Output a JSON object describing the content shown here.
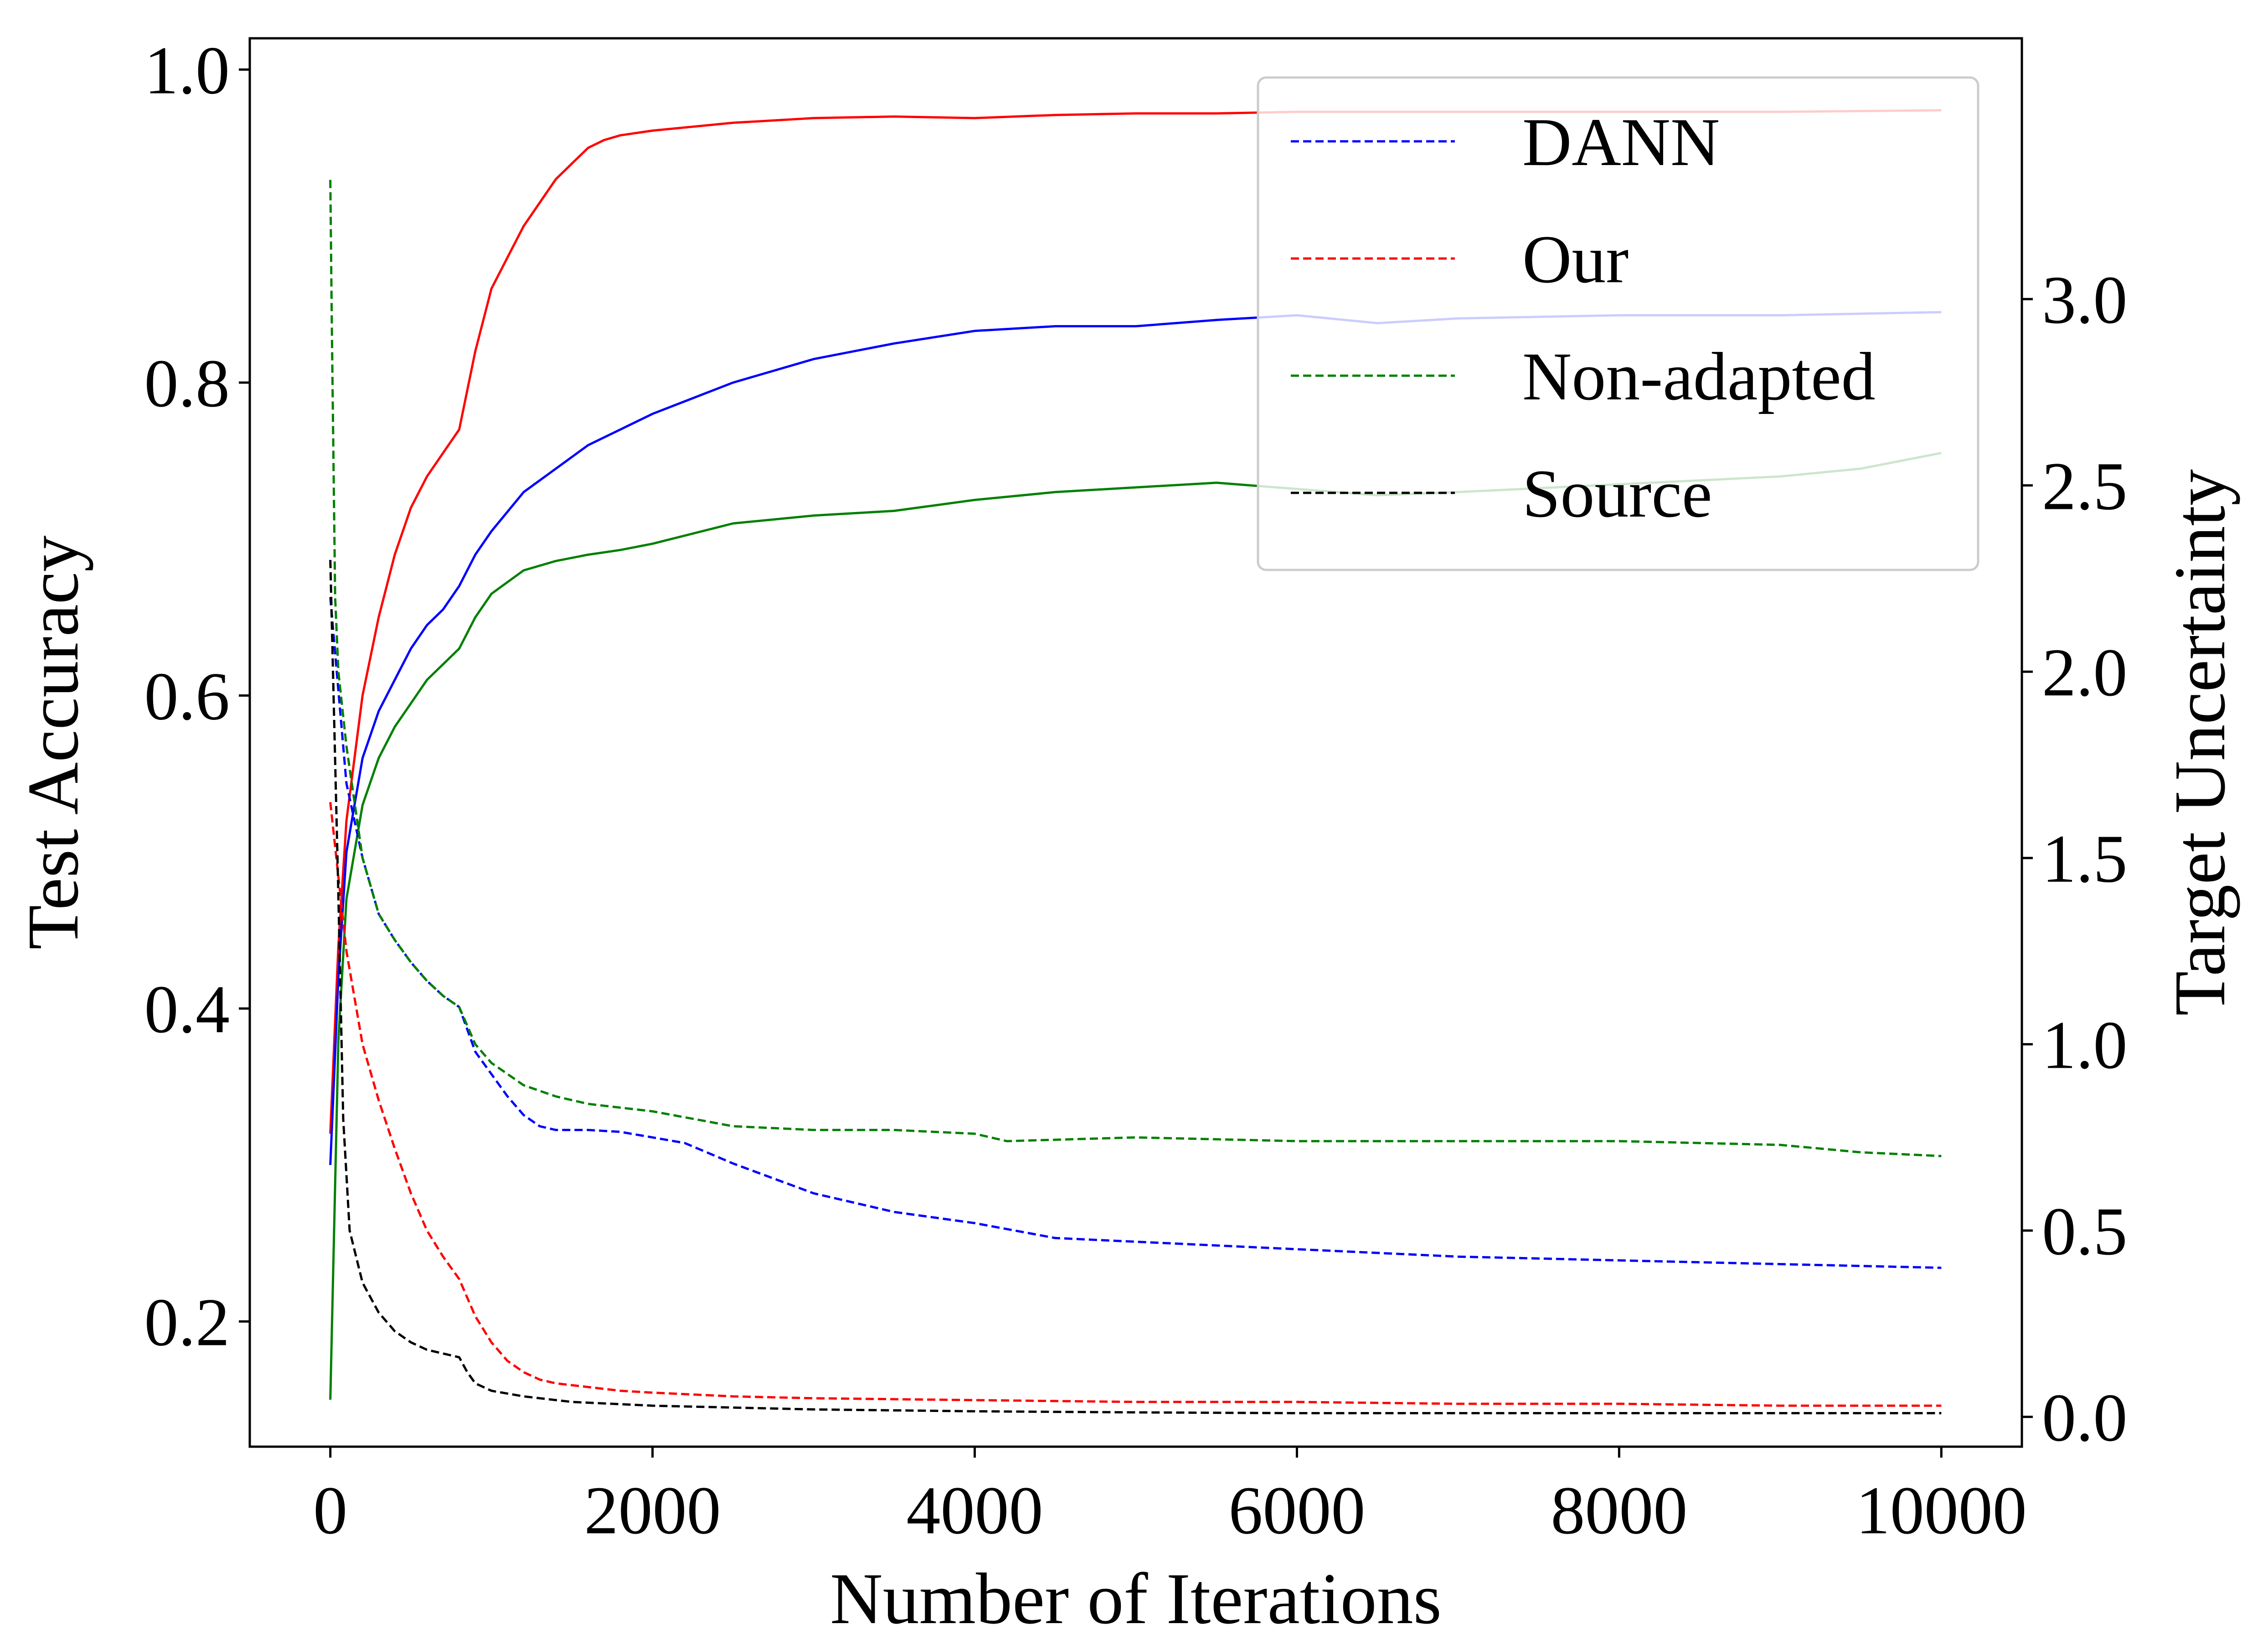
{
  "chart_data": {
    "type": "line",
    "title": "",
    "xlabel": "Number of Iterations",
    "ylabel_left": "Test Accuracy",
    "ylabel_right": "Target Uncertainty",
    "xlim": [
      -500,
      10500
    ],
    "ylim_left": [
      0.12,
      1.02
    ],
    "ylim_right": [
      -0.08,
      3.7
    ],
    "x_ticks": [
      0,
      2000,
      4000,
      6000,
      8000,
      10000
    ],
    "x_tick_labels": [
      "0",
      "2000",
      "4000",
      "6000",
      "8000",
      "10000"
    ],
    "y_left_ticks": [
      0.2,
      0.4,
      0.6,
      0.8,
      1.0
    ],
    "y_left_tick_labels": [
      "0.2",
      "0.4",
      "0.6",
      "0.8",
      "1.0"
    ],
    "y_right_ticks": [
      0.0,
      0.5,
      1.0,
      1.5,
      2.0,
      2.5,
      3.0
    ],
    "y_right_tick_labels": [
      "0.0",
      "0.5",
      "1.0",
      "1.5",
      "2.0",
      "2.5",
      "3.0"
    ],
    "grid": false,
    "legend_position": "top-right",
    "legend": [
      {
        "label": "DANN",
        "color": "#0000ff",
        "style": "dashed"
      },
      {
        "label": "Our",
        "color": "#ff0000",
        "style": "dashed"
      },
      {
        "label": "Non-adapted",
        "color": "#008000",
        "style": "dashed"
      },
      {
        "label": "Source",
        "color": "#000000",
        "style": "dashed"
      }
    ],
    "accuracy_series": [
      {
        "name": "Our",
        "color": "#ff0000",
        "axis": "left",
        "x": [
          0,
          50,
          100,
          200,
          300,
          400,
          500,
          600,
          700,
          800,
          900,
          1000,
          1100,
          1200,
          1300,
          1400,
          1500,
          1600,
          1700,
          1800,
          2000,
          2500,
          3000,
          3500,
          4000,
          4500,
          5000,
          5500,
          6000,
          7000,
          8000,
          9000,
          10000
        ],
        "y": [
          0.32,
          0.44,
          0.52,
          0.6,
          0.65,
          0.69,
          0.72,
          0.74,
          0.755,
          0.77,
          0.82,
          0.86,
          0.88,
          0.9,
          0.915,
          0.93,
          0.94,
          0.95,
          0.955,
          0.958,
          0.961,
          0.966,
          0.969,
          0.97,
          0.969,
          0.971,
          0.972,
          0.972,
          0.973,
          0.973,
          0.973,
          0.973,
          0.974
        ]
      },
      {
        "name": "DANN",
        "color": "#0000ff",
        "axis": "left",
        "x": [
          0,
          50,
          100,
          200,
          300,
          400,
          500,
          600,
          700,
          800,
          900,
          1000,
          1200,
          1400,
          1600,
          1800,
          2000,
          2500,
          3000,
          3500,
          4000,
          4500,
          5000,
          5500,
          6000,
          6500,
          7000,
          8000,
          9000,
          10000
        ],
        "y": [
          0.3,
          0.42,
          0.5,
          0.56,
          0.59,
          0.61,
          0.63,
          0.645,
          0.655,
          0.67,
          0.69,
          0.705,
          0.73,
          0.745,
          0.76,
          0.77,
          0.78,
          0.8,
          0.815,
          0.825,
          0.833,
          0.836,
          0.836,
          0.84,
          0.843,
          0.838,
          0.841,
          0.843,
          0.843,
          0.845
        ]
      },
      {
        "name": "Non-adapted",
        "color": "#008000",
        "axis": "left",
        "x": [
          0,
          50,
          100,
          200,
          300,
          400,
          500,
          600,
          700,
          800,
          900,
          1000,
          1200,
          1400,
          1600,
          1800,
          2000,
          2500,
          3000,
          3500,
          4000,
          4500,
          5000,
          5500,
          6000,
          6500,
          7000,
          8000,
          9000,
          9500,
          10000
        ],
        "y": [
          0.15,
          0.38,
          0.47,
          0.53,
          0.56,
          0.58,
          0.595,
          0.61,
          0.62,
          0.63,
          0.65,
          0.665,
          0.68,
          0.686,
          0.69,
          0.693,
          0.697,
          0.71,
          0.715,
          0.718,
          0.725,
          0.73,
          0.733,
          0.736,
          0.732,
          0.728,
          0.73,
          0.735,
          0.74,
          0.745,
          0.755
        ]
      }
    ],
    "uncertainty_series": [
      {
        "name": "DANN",
        "color": "#0000ff",
        "axis": "right",
        "x": [
          0,
          50,
          100,
          200,
          300,
          400,
          500,
          600,
          700,
          800,
          900,
          1000,
          1100,
          1200,
          1300,
          1400,
          1600,
          1800,
          2000,
          2200,
          2500,
          3000,
          3500,
          4000,
          4500,
          5000,
          5500,
          6000,
          7000,
          8000,
          9000,
          10000
        ],
        "y": [
          2.2,
          1.95,
          1.7,
          1.5,
          1.35,
          1.28,
          1.22,
          1.17,
          1.13,
          1.1,
          0.98,
          0.92,
          0.86,
          0.81,
          0.78,
          0.77,
          0.77,
          0.765,
          0.75,
          0.735,
          0.68,
          0.6,
          0.55,
          0.52,
          0.48,
          0.47,
          0.46,
          0.45,
          0.43,
          0.42,
          0.41,
          0.4
        ]
      },
      {
        "name": "Our",
        "color": "#ff0000",
        "axis": "right",
        "x": [
          0,
          50,
          100,
          200,
          300,
          400,
          500,
          600,
          700,
          800,
          900,
          1000,
          1100,
          1200,
          1300,
          1400,
          1600,
          1800,
          2000,
          2500,
          3000,
          4000,
          5000,
          6000,
          7000,
          8000,
          9000,
          10000
        ],
        "y": [
          1.65,
          1.45,
          1.25,
          1.0,
          0.85,
          0.72,
          0.6,
          0.5,
          0.43,
          0.37,
          0.27,
          0.2,
          0.15,
          0.12,
          0.1,
          0.09,
          0.08,
          0.07,
          0.065,
          0.055,
          0.05,
          0.045,
          0.04,
          0.04,
          0.035,
          0.035,
          0.03,
          0.03
        ]
      },
      {
        "name": "Non-adapted",
        "color": "#008000",
        "axis": "right",
        "x": [
          0,
          10,
          30,
          50,
          100,
          200,
          300,
          400,
          500,
          600,
          700,
          800,
          900,
          1000,
          1200,
          1400,
          1600,
          1800,
          2000,
          2500,
          3000,
          3500,
          4000,
          4200,
          5000,
          6000,
          7000,
          8000,
          9000,
          9500,
          10000
        ],
        "y": [
          3.32,
          2.9,
          2.2,
          2.0,
          1.8,
          1.5,
          1.35,
          1.28,
          1.22,
          1.17,
          1.13,
          1.1,
          1.0,
          0.95,
          0.89,
          0.86,
          0.84,
          0.83,
          0.82,
          0.78,
          0.77,
          0.77,
          0.76,
          0.74,
          0.75,
          0.74,
          0.74,
          0.74,
          0.73,
          0.71,
          0.7
        ]
      },
      {
        "name": "Source",
        "color": "#000000",
        "axis": "right",
        "x": [
          0,
          50,
          80,
          120,
          200,
          300,
          400,
          500,
          600,
          700,
          800,
          850,
          900,
          1000,
          1200,
          1500,
          2000,
          3000,
          4000,
          5000,
          6000,
          7000,
          8000,
          9000,
          10000
        ],
        "y": [
          2.3,
          1.4,
          0.8,
          0.5,
          0.36,
          0.28,
          0.23,
          0.2,
          0.18,
          0.17,
          0.16,
          0.12,
          0.09,
          0.07,
          0.055,
          0.04,
          0.03,
          0.02,
          0.015,
          0.012,
          0.01,
          0.01,
          0.01,
          0.01,
          0.01
        ]
      }
    ]
  }
}
